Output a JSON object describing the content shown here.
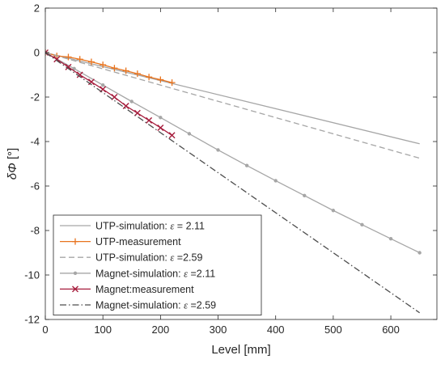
{
  "chart_data": {
    "type": "line",
    "xlabel": "Level [mm]",
    "ylabel_prefix": "δΦ",
    "ylabel_unit": "[°]",
    "xlim": [
      0,
      680
    ],
    "ylim": [
      -12,
      2
    ],
    "xticks": [
      0,
      100,
      200,
      300,
      400,
      500,
      600
    ],
    "yticks": [
      2,
      0,
      -2,
      -4,
      -6,
      -8,
      -10,
      -12
    ],
    "grid": false,
    "legend_position": "bottom-left",
    "series": [
      {
        "name_prefix": "UTP-simulation: ",
        "name_symbol": "ε",
        "name_suffix": " = 2.11",
        "color": "#a6a6a6",
        "line_style": "solid",
        "marker": "none",
        "x": [
          0,
          650
        ],
        "y": [
          0,
          -4.1
        ]
      },
      {
        "name_prefix": "UTP-measurement",
        "name_symbol": "",
        "name_suffix": "",
        "color": "#e8741f",
        "line_style": "solid",
        "marker": "plus",
        "x": [
          0,
          20,
          40,
          60,
          80,
          100,
          120,
          140,
          160,
          180,
          200,
          220
        ],
        "y": [
          0,
          -0.15,
          -0.2,
          -0.3,
          -0.42,
          -0.55,
          -0.7,
          -0.82,
          -0.95,
          -1.1,
          -1.22,
          -1.35
        ]
      },
      {
        "name_prefix": "UTP-simulation: ",
        "name_symbol": "ε",
        "name_suffix": " =2.59",
        "color": "#a6a6a6",
        "line_style": "dashed",
        "marker": "none",
        "x": [
          0,
          650
        ],
        "y": [
          0,
          -4.75
        ]
      },
      {
        "name_prefix": "Magnet-simulation: ",
        "name_symbol": "ε",
        "name_suffix": " =2.11",
        "color": "#a6a6a6",
        "line_style": "solid",
        "marker": "dot",
        "x": [
          0,
          50,
          100,
          150,
          200,
          250,
          300,
          350,
          400,
          450,
          500,
          550,
          600,
          650
        ],
        "y": [
          0,
          -0.72,
          -1.46,
          -2.2,
          -2.92,
          -3.65,
          -4.38,
          -5.08,
          -5.76,
          -6.43,
          -7.1,
          -7.74,
          -8.37,
          -9.0
        ]
      },
      {
        "name_prefix": "Magnet:measurement",
        "name_symbol": "",
        "name_suffix": "",
        "color": "#a61c3c",
        "line_style": "solid",
        "marker": "cross",
        "x": [
          0,
          20,
          40,
          60,
          80,
          100,
          120,
          140,
          160,
          180,
          200,
          220
        ],
        "y": [
          0,
          -0.3,
          -0.65,
          -1.0,
          -1.32,
          -1.65,
          -2.0,
          -2.4,
          -2.72,
          -3.05,
          -3.38,
          -3.72
        ]
      },
      {
        "name_prefix": "Magnet-simulation: ",
        "name_symbol": "ε",
        "name_suffix": " =2.59",
        "color": "#4d4d4d",
        "line_style": "dashdot",
        "marker": "none",
        "x": [
          0,
          650
        ],
        "y": [
          0,
          -11.7
        ]
      }
    ]
  }
}
